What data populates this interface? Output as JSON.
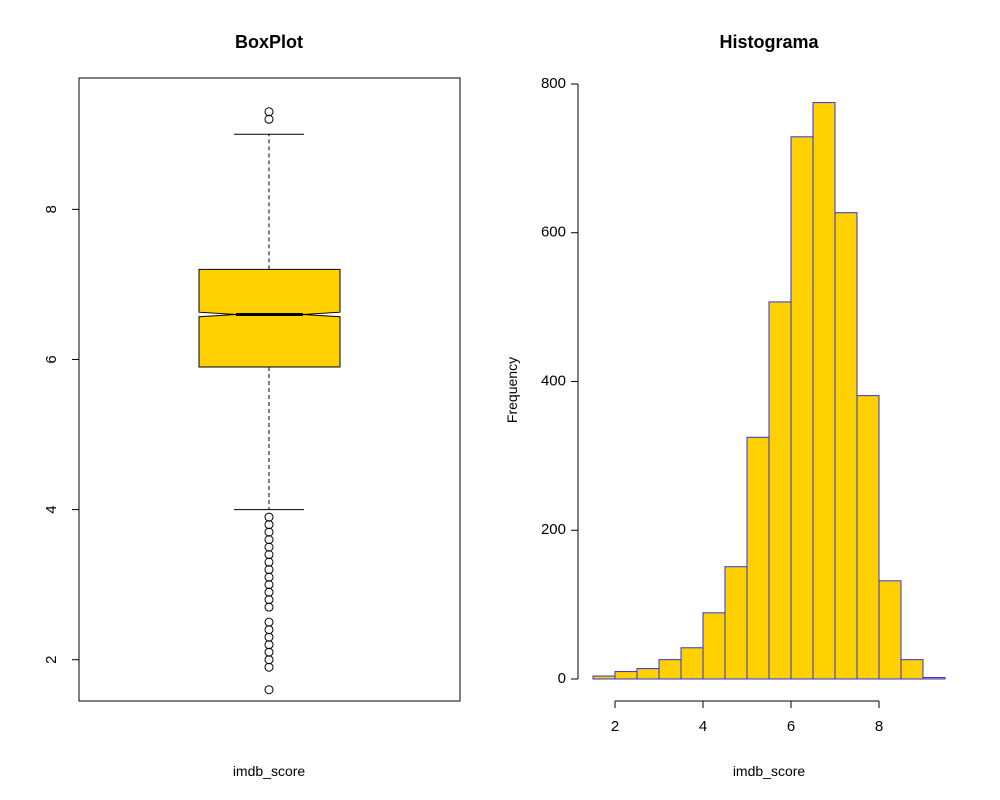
{
  "colors": {
    "fill": "#FFD100",
    "bar_border": "#3030E0",
    "line": "#000000"
  },
  "chart_data": [
    {
      "type": "box",
      "title": "BoxPlot",
      "xlabel": "imdb_score",
      "ylabel": "",
      "notched": true,
      "ylim": [
        1.45,
        9.75
      ],
      "yticks": [
        2,
        4,
        6,
        8
      ],
      "stats": {
        "whisker_low": 4.0,
        "q1": 5.9,
        "median": 6.6,
        "q3": 7.2,
        "whisker_high": 9.0,
        "notch_low": 6.57,
        "notch_high": 6.63
      },
      "outliers_high": [
        9.2,
        9.3
      ],
      "outliers_low": [
        1.6,
        1.9,
        2.0,
        2.1,
        2.2,
        2.3,
        2.4,
        2.5,
        2.7,
        2.8,
        2.9,
        3.0,
        3.1,
        3.2,
        3.3,
        3.4,
        3.5,
        3.6,
        3.7,
        3.8,
        3.9
      ]
    },
    {
      "type": "bar",
      "title": "Histograma",
      "xlabel": "imdb_score",
      "ylabel": "Frequency",
      "xlim": [
        1.5,
        9.5
      ],
      "ylim": [
        0,
        800
      ],
      "xticks": [
        2,
        4,
        6,
        8
      ],
      "yticks": [
        0,
        200,
        400,
        600,
        800
      ],
      "bin_edges": [
        1.5,
        2.0,
        2.5,
        3.0,
        3.5,
        4.0,
        4.5,
        5.0,
        5.5,
        6.0,
        6.5,
        7.0,
        7.5,
        8.0,
        8.5,
        9.0,
        9.5
      ],
      "counts": [
        4,
        10,
        14,
        26,
        42,
        89,
        151,
        325,
        507,
        729,
        775,
        627,
        381,
        132,
        26,
        2
      ]
    }
  ]
}
